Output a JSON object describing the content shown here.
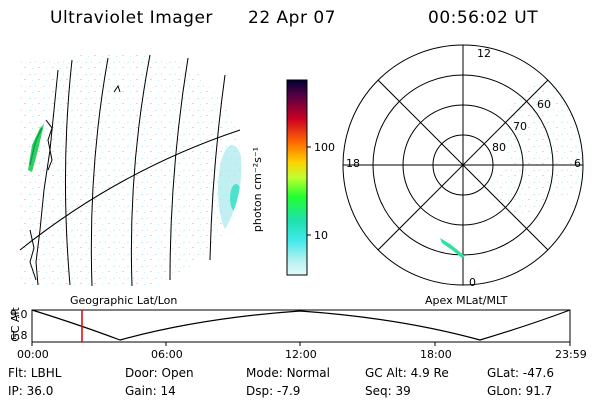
{
  "header": {
    "instrument": "Ultraviolet Imager",
    "date": "22 Apr 07",
    "time": "00:56:02 UT"
  },
  "geo_panel": {
    "caption": "Geographic Lat/Lon"
  },
  "colorbar": {
    "unit_label": "photon cm⁻²s⁻¹",
    "ticks": [
      "100",
      "10"
    ],
    "colors": [
      "#000033",
      "#330040",
      "#660033",
      "#99002a",
      "#cc0022",
      "#e81010",
      "#ff6a00",
      "#ffa000",
      "#ffd000",
      "#ffff30",
      "#c0ff30",
      "#60ff30",
      "#20ff30",
      "#20ffb0",
      "#40f0f0",
      "#a0f0f0",
      "#d8f8f8"
    ]
  },
  "polar_panel": {
    "caption": "Apex MLat/MLT",
    "mlt_labels": {
      "top": "12",
      "left": "18",
      "right": "6",
      "bottom": "0"
    },
    "lat_labels": [
      "60",
      "70",
      "80"
    ]
  },
  "altitude_plot": {
    "ylabel": "GC Alt",
    "yticks": [
      "9.0",
      "1.8"
    ],
    "xticks": [
      "00:00",
      "06:00",
      "12:00",
      "18:00",
      "23:59"
    ],
    "marker_time_hours": 0.93
  },
  "info": {
    "row1": [
      {
        "label": "Flt:",
        "value": "LBHL"
      },
      {
        "label": "Door:",
        "value": "Open"
      },
      {
        "label": "Mode:",
        "value": "Normal"
      },
      {
        "label": "GC Alt:",
        "value": "4.9 Re"
      },
      {
        "label": "GLat:",
        "value": "-47.6"
      }
    ],
    "row2": [
      {
        "label": "IP:",
        "value": "36.0"
      },
      {
        "label": "Gain:",
        "value": "14"
      },
      {
        "label": "Dsp:",
        "value": "-7.9"
      },
      {
        "label": "Seq:",
        "value": "39"
      },
      {
        "label": "GLon:",
        "value": "91.7"
      }
    ]
  }
}
